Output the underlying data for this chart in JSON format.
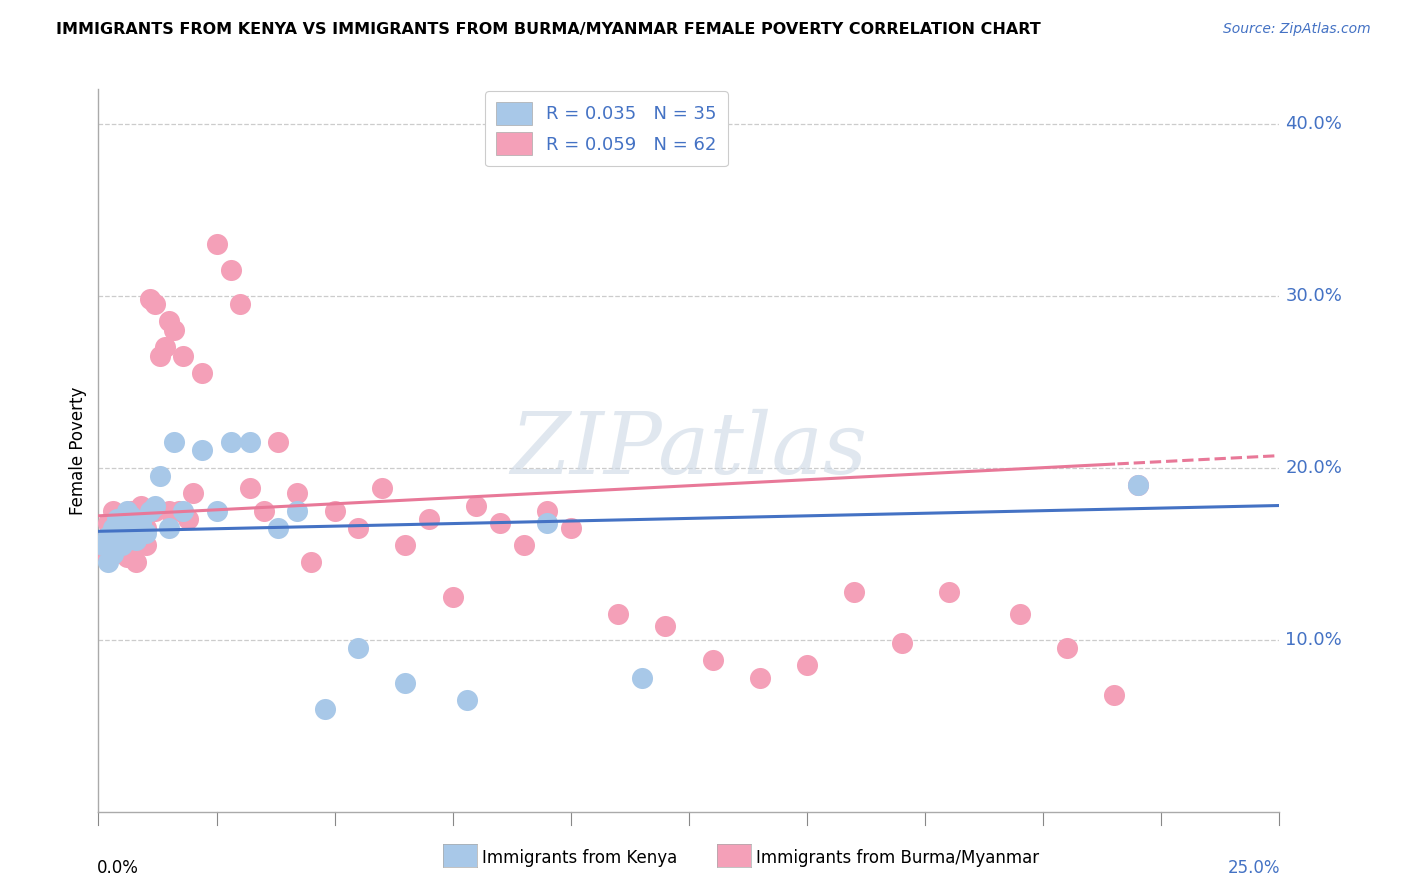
{
  "title": "IMMIGRANTS FROM KENYA VS IMMIGRANTS FROM BURMA/MYANMAR FEMALE POVERTY CORRELATION CHART",
  "source": "Source: ZipAtlas.com",
  "ylabel": "Female Poverty",
  "xlim": [
    0.0,
    0.25
  ],
  "ylim": [
    0.0,
    0.42
  ],
  "yticks": [
    0.1,
    0.2,
    0.3,
    0.4
  ],
  "ytick_labels": [
    "10.0%",
    "20.0%",
    "30.0%",
    "40.0%"
  ],
  "xleft_label": "0.0%",
  "xright_label": "25.0%",
  "kenya_color": "#a8c8e8",
  "burma_color": "#f4a0b8",
  "kenya_line_color": "#4472c4",
  "burma_line_color": "#e87898",
  "legend_label_kenya": "R = 0.035   N = 35",
  "legend_label_burma": "R = 0.059   N = 62",
  "bottom_legend_kenya": "Immigrants from Kenya",
  "bottom_legend_burma": "Immigrants from Burma/Myanmar",
  "watermark": "ZIPatlas",
  "kenya_x": [
    0.001,
    0.002,
    0.002,
    0.003,
    0.003,
    0.004,
    0.004,
    0.005,
    0.005,
    0.006,
    0.006,
    0.007,
    0.007,
    0.008,
    0.009,
    0.01,
    0.011,
    0.012,
    0.013,
    0.015,
    0.016,
    0.018,
    0.022,
    0.025,
    0.028,
    0.032,
    0.038,
    0.042,
    0.048,
    0.055,
    0.065,
    0.078,
    0.095,
    0.115,
    0.22
  ],
  "kenya_y": [
    0.155,
    0.16,
    0.145,
    0.15,
    0.165,
    0.158,
    0.17,
    0.155,
    0.168,
    0.162,
    0.175,
    0.165,
    0.172,
    0.158,
    0.168,
    0.162,
    0.175,
    0.178,
    0.195,
    0.165,
    0.215,
    0.175,
    0.21,
    0.175,
    0.215,
    0.215,
    0.165,
    0.175,
    0.06,
    0.095,
    0.075,
    0.065,
    0.168,
    0.078,
    0.19
  ],
  "burma_x": [
    0.001,
    0.002,
    0.002,
    0.003,
    0.003,
    0.004,
    0.004,
    0.005,
    0.005,
    0.006,
    0.006,
    0.007,
    0.007,
    0.008,
    0.008,
    0.009,
    0.01,
    0.01,
    0.011,
    0.012,
    0.012,
    0.013,
    0.014,
    0.015,
    0.015,
    0.016,
    0.017,
    0.018,
    0.019,
    0.02,
    0.022,
    0.025,
    0.028,
    0.03,
    0.032,
    0.035,
    0.038,
    0.042,
    0.045,
    0.05,
    0.055,
    0.06,
    0.065,
    0.07,
    0.075,
    0.08,
    0.085,
    0.09,
    0.095,
    0.1,
    0.11,
    0.12,
    0.13,
    0.14,
    0.15,
    0.16,
    0.17,
    0.18,
    0.195,
    0.205,
    0.215,
    0.22
  ],
  "burma_y": [
    0.155,
    0.148,
    0.168,
    0.162,
    0.175,
    0.155,
    0.165,
    0.168,
    0.158,
    0.148,
    0.172,
    0.155,
    0.175,
    0.145,
    0.168,
    0.178,
    0.155,
    0.165,
    0.298,
    0.295,
    0.175,
    0.265,
    0.27,
    0.175,
    0.285,
    0.28,
    0.175,
    0.265,
    0.17,
    0.185,
    0.255,
    0.33,
    0.315,
    0.295,
    0.188,
    0.175,
    0.215,
    0.185,
    0.145,
    0.175,
    0.165,
    0.188,
    0.155,
    0.17,
    0.125,
    0.178,
    0.168,
    0.155,
    0.175,
    0.165,
    0.115,
    0.108,
    0.088,
    0.078,
    0.085,
    0.128,
    0.098,
    0.128,
    0.115,
    0.095,
    0.068,
    0.19
  ]
}
